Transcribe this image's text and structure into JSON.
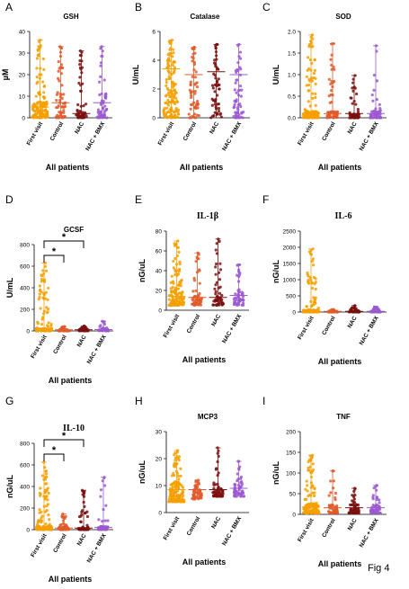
{
  "figure_label": "Fig 4",
  "colors": {
    "First visit": "#f5a000",
    "Control": "#e05a2b",
    "NAC": "#7a0f0f",
    "NAC + BMX": "#9b59d0"
  },
  "chart_data": [
    {
      "type": "scatter",
      "panel": "A",
      "title": "GSH",
      "ylabel": "µM",
      "xlabel": "All patients",
      "ylim": [
        0,
        40
      ],
      "yticks": [
        0,
        10,
        20,
        30,
        40
      ],
      "categories": [
        "First visit",
        "Control",
        "NAC",
        "NAC + BMX"
      ],
      "series": [
        {
          "name": "First visit",
          "max": 36,
          "min": 0,
          "median": 5,
          "density": "high"
        },
        {
          "name": "Control",
          "max": 33,
          "min": 0,
          "median": 7,
          "density": "medium"
        },
        {
          "name": "NAC",
          "max": 31,
          "min": 0,
          "median": 2,
          "density": "medium"
        },
        {
          "name": "NAC + BMX",
          "max": 33,
          "min": 0,
          "median": 7,
          "density": "medium"
        }
      ],
      "significance": []
    },
    {
      "type": "scatter",
      "panel": "B",
      "title": "Catalase",
      "ylabel": "U/mL",
      "xlabel": "All patients",
      "ylim": [
        0,
        6
      ],
      "yticks": [
        0,
        2,
        4,
        6
      ],
      "categories": [
        "First visit",
        "Control",
        "NAC",
        "NAC + BMX"
      ],
      "series": [
        {
          "name": "First visit",
          "max": 5.4,
          "min": 0,
          "median": 3.4,
          "density": "high"
        },
        {
          "name": "Control",
          "max": 4.9,
          "min": 0,
          "median": 3.0,
          "density": "medium"
        },
        {
          "name": "NAC",
          "max": 5.1,
          "min": 0,
          "median": 3.2,
          "density": "medium"
        },
        {
          "name": "NAC + BMX",
          "max": 5.1,
          "min": 0,
          "median": 3.0,
          "density": "medium"
        }
      ],
      "significance": []
    },
    {
      "type": "scatter",
      "panel": "C",
      "title": "SOD",
      "ylabel": "U/mL",
      "xlabel": "All patients",
      "ylim": [
        0,
        2.0
      ],
      "yticks": [
        0.0,
        0.5,
        1.0,
        1.5,
        2.0
      ],
      "categories": [
        "First visit",
        "Control",
        "NAC",
        "NAC + BMX"
      ],
      "series": [
        {
          "name": "First visit",
          "max": 1.92,
          "min": 0,
          "median": 0.1,
          "density": "high"
        },
        {
          "name": "Control",
          "max": 1.72,
          "min": 0,
          "median": 0.1,
          "density": "medium"
        },
        {
          "name": "NAC",
          "max": 0.98,
          "min": 0,
          "median": 0.1,
          "density": "medium"
        },
        {
          "name": "NAC + BMX",
          "max": 1.67,
          "min": 0,
          "median": 0.1,
          "density": "medium"
        }
      ],
      "significance": []
    },
    {
      "type": "scatter",
      "panel": "D",
      "title": "GCSF",
      "ylabel": "U/mL",
      "xlabel": "All patients",
      "ylim": [
        0,
        800
      ],
      "yticks": [
        0,
        200,
        400,
        600,
        800
      ],
      "categories": [
        "First visit",
        "Control",
        "NAC",
        "NAC + BMX"
      ],
      "series": [
        {
          "name": "First visit",
          "max": 630,
          "min": 0,
          "median": 15,
          "density": "high"
        },
        {
          "name": "Control",
          "max": 40,
          "min": 0,
          "median": 10,
          "density": "medium"
        },
        {
          "name": "NAC",
          "max": 45,
          "min": 0,
          "median": 10,
          "density": "medium"
        },
        {
          "name": "NAC + BMX",
          "max": 90,
          "min": 0,
          "median": 12,
          "density": "medium"
        }
      ],
      "significance": [
        {
          "from": 0,
          "to": 1,
          "label": "*"
        },
        {
          "from": 0,
          "to": 2,
          "label": "*"
        }
      ]
    },
    {
      "type": "scatter",
      "panel": "E",
      "title": "IL-1β",
      "ylabel": "nG/uL",
      "xlabel": "All patients",
      "ylim": [
        0,
        80
      ],
      "yticks": [
        0,
        20,
        40,
        60,
        80
      ],
      "categories": [
        "First visit",
        "Control",
        "NAC",
        "NAC + BMX"
      ],
      "series": [
        {
          "name": "First visit",
          "max": 70,
          "min": 5,
          "median": 14,
          "density": "high"
        },
        {
          "name": "Control",
          "max": 58,
          "min": 5,
          "median": 13,
          "density": "medium"
        },
        {
          "name": "NAC",
          "max": 72,
          "min": 5,
          "median": 13,
          "density": "medium"
        },
        {
          "name": "NAC + BMX",
          "max": 46,
          "min": 5,
          "median": 15,
          "density": "medium"
        }
      ],
      "significance": []
    },
    {
      "type": "scatter",
      "panel": "F",
      "title": "IL-6",
      "ylabel": "nG/uL",
      "xlabel": "All patients",
      "ylim": [
        0,
        2500
      ],
      "yticks": [
        0,
        500,
        1000,
        1500,
        2000,
        2500
      ],
      "categories": [
        "First visit",
        "Control",
        "NAC",
        "NAC + BMX"
      ],
      "series": [
        {
          "name": "First visit",
          "max": 1950,
          "min": 0,
          "median": 40,
          "density": "high"
        },
        {
          "name": "Control",
          "max": 80,
          "min": 0,
          "median": 20,
          "density": "medium"
        },
        {
          "name": "NAC",
          "max": 200,
          "min": 0,
          "median": 20,
          "density": "medium"
        },
        {
          "name": "NAC + BMX",
          "max": 160,
          "min": 0,
          "median": 20,
          "density": "medium"
        }
      ],
      "significance": []
    },
    {
      "type": "scatter",
      "panel": "G",
      "title": "IL-10",
      "ylabel": "nG/uL",
      "xlabel": "All patients",
      "ylim": [
        0,
        800
      ],
      "yticks": [
        0,
        200,
        400,
        600,
        800
      ],
      "categories": [
        "First visit",
        "Control",
        "NAC",
        "NAC + BMX"
      ],
      "series": [
        {
          "name": "First visit",
          "max": 625,
          "min": 0,
          "median": 20,
          "density": "high"
        },
        {
          "name": "Control",
          "max": 145,
          "min": 0,
          "median": 15,
          "density": "medium"
        },
        {
          "name": "NAC",
          "max": 365,
          "min": 0,
          "median": 15,
          "density": "medium"
        },
        {
          "name": "NAC + BMX",
          "max": 485,
          "min": 0,
          "median": 20,
          "density": "medium"
        }
      ],
      "significance": [
        {
          "from": 0,
          "to": 1,
          "label": "*"
        },
        {
          "from": 0,
          "to": 2,
          "label": "*"
        }
      ]
    },
    {
      "type": "scatter",
      "panel": "H",
      "title": "MCP3",
      "ylabel": "nG/uL",
      "xlabel": "All patients",
      "ylim": [
        0,
        30
      ],
      "yticks": [
        0,
        10,
        20,
        30
      ],
      "categories": [
        "First visit",
        "Control",
        "NAC",
        "NAC + BMX"
      ],
      "series": [
        {
          "name": "First visit",
          "max": 23,
          "min": 4,
          "median": 8.5,
          "density": "high"
        },
        {
          "name": "Control",
          "max": 12,
          "min": 5,
          "median": 8.5,
          "density": "medium"
        },
        {
          "name": "NAC",
          "max": 24,
          "min": 6,
          "median": 8.5,
          "density": "medium"
        },
        {
          "name": "NAC + BMX",
          "max": 19,
          "min": 6,
          "median": 9,
          "density": "medium"
        }
      ],
      "significance": []
    },
    {
      "type": "scatter",
      "panel": "I",
      "title": "TNF",
      "ylabel": "nG/uL",
      "xlabel": "All patients",
      "ylim": [
        0,
        200
      ],
      "yticks": [
        0,
        50,
        100,
        150,
        200
      ],
      "categories": [
        "First visit",
        "Control",
        "NAC",
        "NAC + BMX"
      ],
      "series": [
        {
          "name": "First visit",
          "max": 143,
          "min": 3,
          "median": 18,
          "density": "high"
        },
        {
          "name": "Control",
          "max": 105,
          "min": 3,
          "median": 16,
          "density": "medium"
        },
        {
          "name": "NAC",
          "max": 63,
          "min": 3,
          "median": 16,
          "density": "medium"
        },
        {
          "name": "NAC + BMX",
          "max": 70,
          "min": 3,
          "median": 16,
          "density": "medium"
        }
      ],
      "significance": []
    }
  ]
}
